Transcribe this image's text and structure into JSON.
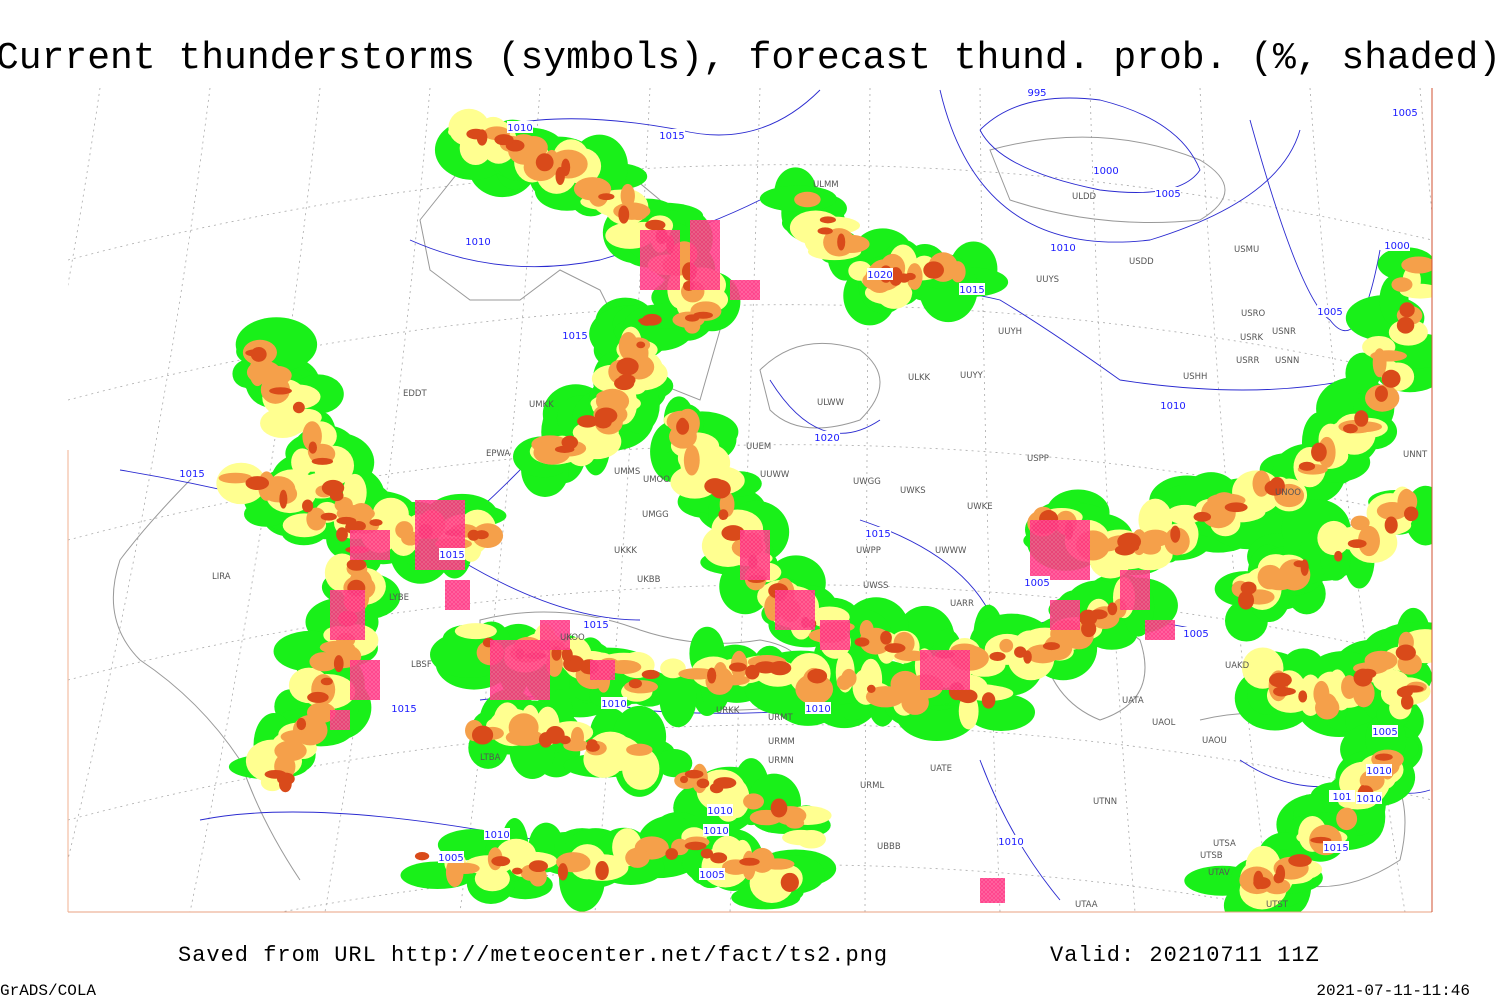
{
  "title": "Current thunderstorms (symbols), forecast thund. prob. (%, shaded)",
  "footer": {
    "saved_from": "Saved from URL http://meteocenter.net/fact/ts2.png",
    "valid": "Valid: 20210711 11Z",
    "software": "GrADS/COLA",
    "timestamp": "2021-07-11-11:46"
  },
  "isobar_labels": [
    "1010",
    "1015",
    "995",
    "1000",
    "1005",
    "1005",
    "1010",
    "1010",
    "1020",
    "1015",
    "1000",
    "1015",
    "1005",
    "1010",
    "1020",
    "1015",
    "1015",
    "1015",
    "1005",
    "1015",
    "1005",
    "1010",
    "1010",
    "1015",
    "1005",
    "1010",
    "1010",
    "101",
    "1010",
    "1010",
    "1010",
    "1010",
    "1005",
    "1005",
    "1015"
  ],
  "station_labels": [
    "EDDT",
    "UMKK",
    "EPWA",
    "UMMS",
    "UMOO",
    "UMGG",
    "UKKK",
    "UKBB",
    "UKOO",
    "UUEM",
    "UUWW",
    "UWGG",
    "UWKS",
    "UWKE",
    "UWWW",
    "UWPP",
    "UWSS",
    "UARR",
    "ULKK",
    "UUYY",
    "UUYH",
    "UUYS",
    "ULWW",
    "ULMM",
    "ULDD",
    "USDD",
    "USMU",
    "USRO",
    "USRK",
    "USNR",
    "USRR",
    "USNN",
    "USHH",
    "USPP",
    "UNNT",
    "UNOO",
    "UAKD",
    "UATA",
    "UAOL",
    "UAOU",
    "UTNN",
    "UTAA",
    "UTAV",
    "UTSB",
    "UTSA",
    "UTST",
    "URMT",
    "URMM",
    "URMN",
    "URML",
    "URKK",
    "UATE",
    "UBBB",
    "LIRA",
    "LYBE",
    "LBSF",
    "LTBA"
  ]
}
